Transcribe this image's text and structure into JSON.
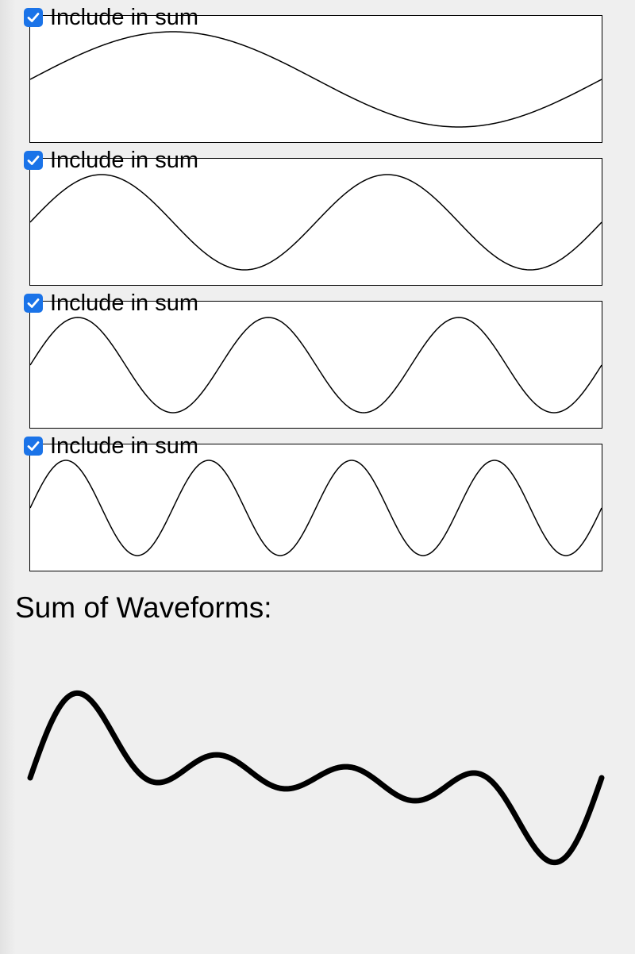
{
  "waveforms": [
    {
      "label": "Include in sum",
      "checked": true,
      "cycles": 1
    },
    {
      "label": "Include in sum",
      "checked": true,
      "cycles": 2
    },
    {
      "label": "Include in sum",
      "checked": true,
      "cycles": 3
    },
    {
      "label": "Include in sum",
      "checked": true,
      "cycles": 4
    }
  ],
  "sum": {
    "title": "Sum of Waveforms:"
  },
  "colors": {
    "checkbox": "#1a73e8",
    "stroke": "#000000",
    "panel_bg": "#ffffff",
    "page_bg": "#efefef"
  },
  "icons": {
    "checkbox_check": "checkmark-icon"
  }
}
